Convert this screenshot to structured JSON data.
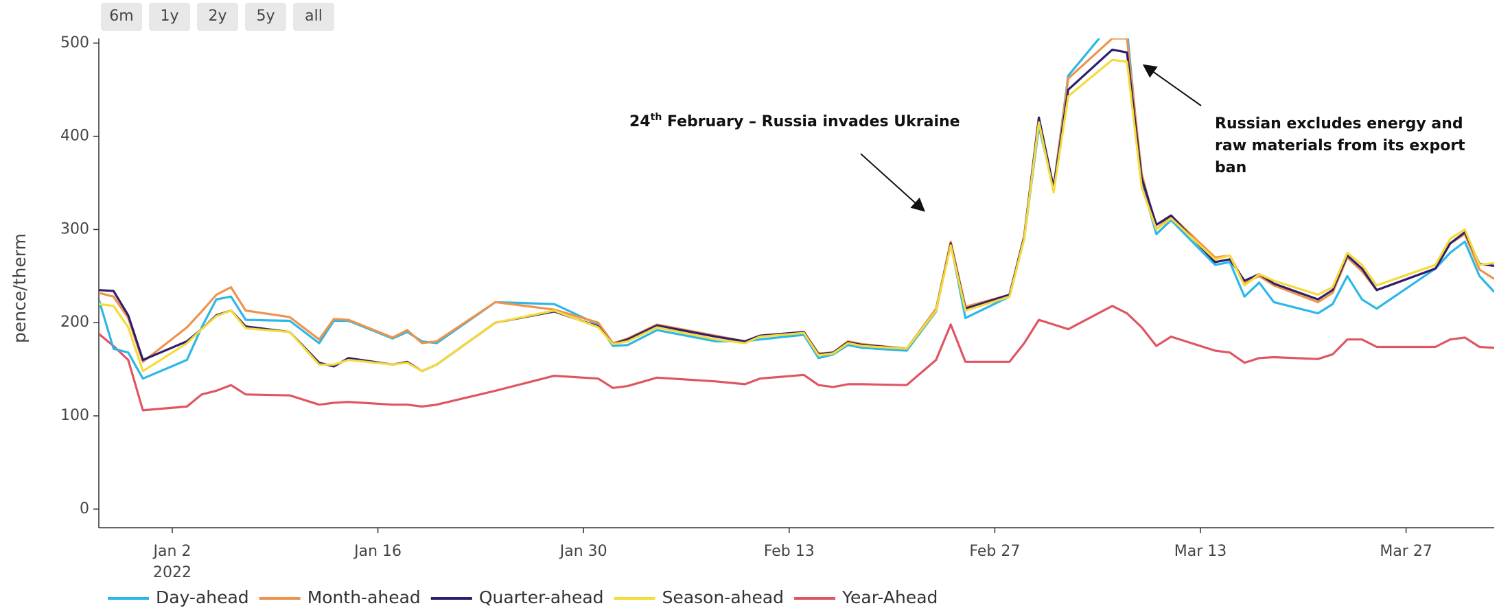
{
  "range_buttons": [
    "6m",
    "1y",
    "2y",
    "5y",
    "all"
  ],
  "annotations": [
    {
      "day": "24",
      "suffix": "th",
      "text": " February – Russia invades Ukraine"
    },
    {
      "lines": [
        "Russian excludes energy and",
        "raw materials from its export",
        "ban"
      ]
    }
  ],
  "chart_data": {
    "type": "line",
    "y_label": "pence/therm",
    "x_year": "2022",
    "x": [
      "2021-12-28",
      "2021-12-29",
      "2021-12-30",
      "2021-12-31",
      "2022-01-03",
      "2022-01-04",
      "2022-01-05",
      "2022-01-06",
      "2022-01-07",
      "2022-01-10",
      "2022-01-12",
      "2022-01-13",
      "2022-01-14",
      "2022-01-17",
      "2022-01-18",
      "2022-01-19",
      "2022-01-20",
      "2022-01-24",
      "2022-01-28",
      "2022-01-31",
      "2022-02-01",
      "2022-02-02",
      "2022-02-04",
      "2022-02-08",
      "2022-02-10",
      "2022-02-11",
      "2022-02-14",
      "2022-02-15",
      "2022-02-16",
      "2022-02-17",
      "2022-02-18",
      "2022-02-21",
      "2022-02-23",
      "2022-02-24",
      "2022-02-25",
      "2022-02-28",
      "2022-03-01",
      "2022-03-02",
      "2022-03-03",
      "2022-03-04",
      "2022-03-07",
      "2022-03-08",
      "2022-03-09",
      "2022-03-10",
      "2022-03-11",
      "2022-03-14",
      "2022-03-15",
      "2022-03-16",
      "2022-03-17",
      "2022-03-18",
      "2022-03-21",
      "2022-03-22",
      "2022-03-23",
      "2022-03-24",
      "2022-03-25",
      "2022-03-29",
      "2022-03-30",
      "2022-03-31",
      "2022-04-01",
      "2022-04-02"
    ],
    "series": [
      {
        "name": "Day-ahead",
        "color": "#2bb7ea",
        "values": [
          225,
          172,
          168,
          140,
          160,
          195,
          225,
          228,
          203,
          202,
          178,
          202,
          202,
          183,
          190,
          180,
          178,
          222,
          220,
          198,
          175,
          176,
          192,
          180,
          180,
          182,
          187,
          162,
          166,
          176,
          173,
          170,
          212,
          285,
          205,
          228,
          290,
          410,
          345,
          465,
          522,
          515,
          350,
          295,
          310,
          262,
          265,
          228,
          243,
          222,
          210,
          220,
          250,
          225,
          215,
          258,
          275,
          287,
          250,
          233
        ]
      },
      {
        "name": "Month-ahead",
        "color": "#f0924a",
        "values": [
          232,
          228,
          205,
          158,
          195,
          212,
          230,
          238,
          213,
          206,
          182,
          204,
          203,
          184,
          192,
          178,
          180,
          222,
          214,
          200,
          178,
          183,
          198,
          186,
          180,
          186,
          190,
          167,
          168,
          180,
          177,
          172,
          215,
          287,
          217,
          230,
          293,
          420,
          345,
          462,
          505,
          505,
          360,
          300,
          315,
          270,
          272,
          243,
          250,
          240,
          222,
          232,
          270,
          255,
          235,
          258,
          285,
          295,
          257,
          247
        ]
      },
      {
        "name": "Quarter-ahead",
        "color": "#2e1f6e",
        "values": [
          235,
          234,
          208,
          160,
          180,
          193,
          208,
          213,
          196,
          190,
          157,
          153,
          162,
          155,
          158,
          148,
          155,
          200,
          212,
          196,
          177,
          182,
          197,
          185,
          180,
          186,
          190,
          166,
          168,
          179,
          176,
          172,
          213,
          285,
          215,
          230,
          292,
          420,
          345,
          450,
          493,
          490,
          355,
          305,
          315,
          265,
          268,
          245,
          252,
          242,
          225,
          235,
          272,
          258,
          235,
          258,
          285,
          297,
          263,
          261
        ]
      },
      {
        "name": "Season-ahead",
        "color": "#f5db3a",
        "values": [
          220,
          218,
          195,
          148,
          178,
          193,
          207,
          213,
          194,
          190,
          155,
          155,
          160,
          155,
          157,
          148,
          155,
          200,
          213,
          195,
          177,
          180,
          195,
          182,
          178,
          185,
          189,
          165,
          167,
          178,
          175,
          172,
          213,
          283,
          213,
          228,
          290,
          415,
          340,
          443,
          482,
          480,
          345,
          300,
          312,
          268,
          272,
          240,
          252,
          245,
          230,
          238,
          275,
          262,
          240,
          262,
          290,
          300,
          262,
          264
        ]
      },
      {
        "name": "Year-Ahead",
        "color": "#e05563",
        "values": [
          188,
          175,
          160,
          106,
          110,
          123,
          127,
          133,
          123,
          122,
          112,
          114,
          115,
          112,
          112,
          110,
          112,
          127,
          143,
          140,
          130,
          132,
          141,
          137,
          134,
          140,
          144,
          133,
          131,
          134,
          134,
          133,
          160,
          198,
          158,
          158,
          178,
          203,
          198,
          193,
          218,
          210,
          195,
          175,
          185,
          170,
          168,
          157,
          162,
          163,
          161,
          166,
          182,
          182,
          174,
          174,
          182,
          184,
          174,
          173
        ]
      }
    ],
    "xlim": [
      "2021-12-28",
      "2022-04-02"
    ],
    "xticks": [
      {
        "value": "2022-01-02",
        "label": "Jan 2"
      },
      {
        "value": "2022-01-16",
        "label": "Jan 16"
      },
      {
        "value": "2022-01-30",
        "label": "Jan 30"
      },
      {
        "value": "2022-02-13",
        "label": "Feb 13"
      },
      {
        "value": "2022-02-27",
        "label": "Feb 27"
      },
      {
        "value": "2022-03-13",
        "label": "Mar 13"
      },
      {
        "value": "2022-03-27",
        "label": "Mar 27"
      }
    ],
    "ylim": [
      -20,
      505
    ],
    "yticks": [
      0,
      100,
      200,
      300,
      400,
      500
    ],
    "grid": false
  }
}
